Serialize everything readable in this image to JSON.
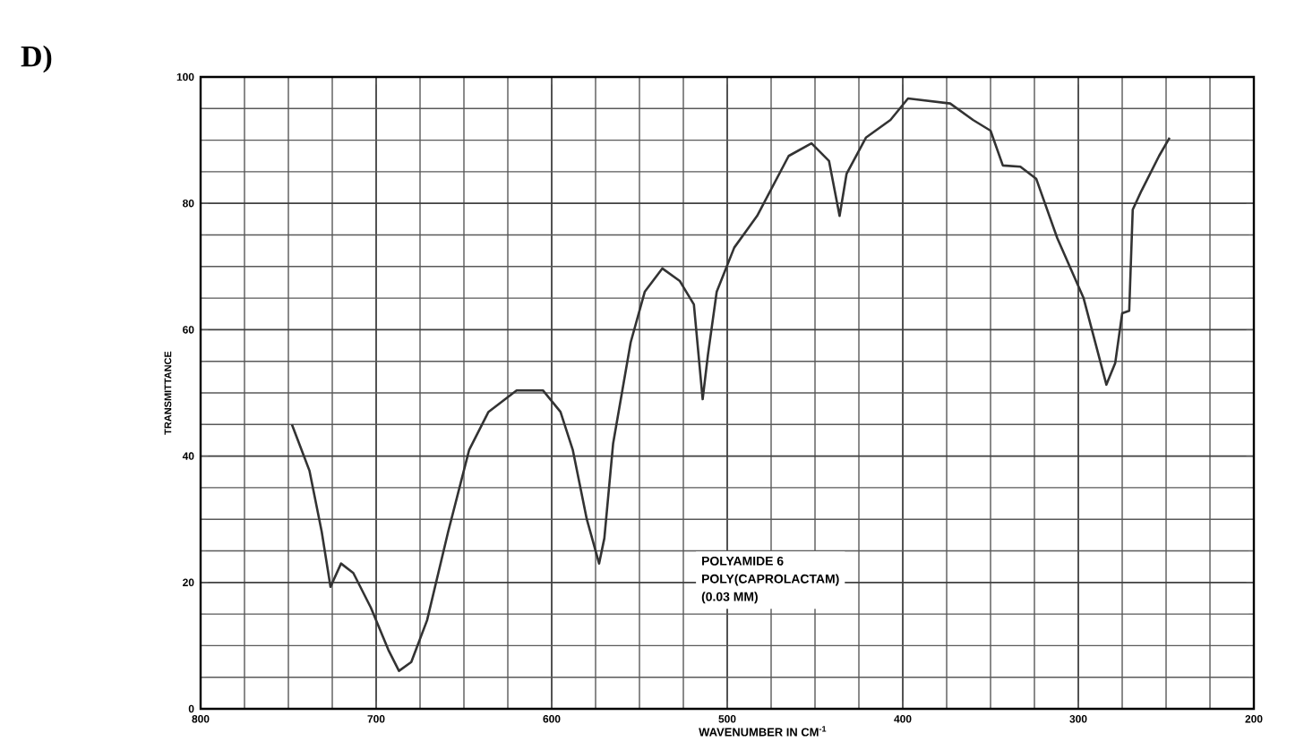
{
  "chart_data": {
    "type": "line",
    "title": "D)",
    "xlabel": "WAVENUMBER IN CM$^{-1}$",
    "ylabel": "TRANSMITTANCE",
    "annotations": [
      "POLYAMIDE 6",
      "POLY(CAPROLACTAM)",
      "(0.03 MM)"
    ],
    "xlim": [
      800,
      200
    ],
    "ylim": [
      0,
      100
    ],
    "xticks": [
      800,
      700,
      600,
      500,
      400,
      300,
      200
    ],
    "yticks": [
      0,
      20,
      40,
      60,
      80,
      100
    ],
    "grid": true,
    "marker": "none",
    "line_style": "solid",
    "series": [
      {
        "color": "#333333",
        "x": [
          748,
          738,
          731,
          726,
          720,
          713,
          703,
          693,
          687,
          680,
          671,
          659,
          647,
          636,
          620,
          605,
          595,
          588,
          580,
          573,
          570,
          565,
          555,
          547,
          537,
          527,
          519,
          514,
          511,
          506,
          496,
          483,
          465,
          452,
          442,
          436,
          432,
          421,
          407,
          397,
          373,
          360,
          350,
          343,
          333,
          324,
          312,
          297,
          284,
          279,
          275,
          271,
          269,
          264,
          254,
          248
        ],
        "values": [
          45,
          37.7,
          28,
          19.3,
          23,
          21.5,
          16,
          9.3,
          6,
          7.4,
          14,
          28,
          41,
          47,
          50.4,
          50.4,
          47,
          41,
          30,
          23,
          27,
          42,
          58,
          66,
          69.7,
          67.7,
          64,
          49,
          56,
          66,
          73,
          78,
          87.5,
          89.5,
          86.7,
          78,
          84.7,
          90.4,
          93.2,
          96.6,
          95.8,
          93.2,
          91.5,
          86,
          85.8,
          83.9,
          74.5,
          65,
          51.3,
          54.7,
          62.6,
          63,
          79,
          82,
          87.5,
          90.4
        ]
      }
    ]
  }
}
